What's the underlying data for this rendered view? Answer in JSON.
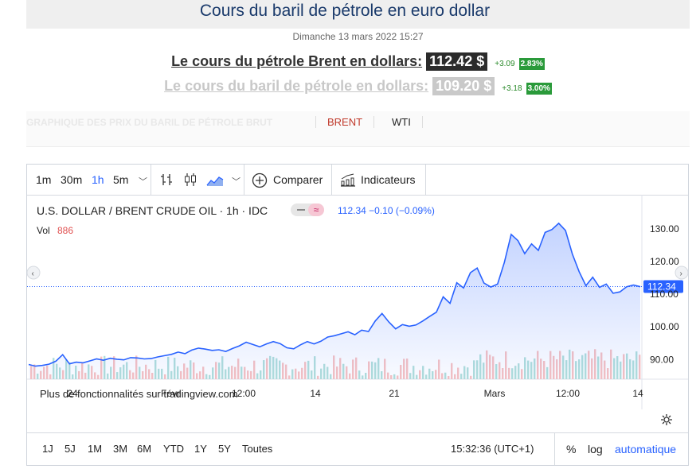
{
  "header": {
    "title": "Cours du baril de pétrole en euro dollar",
    "date": "Dimanche 13 mars 2022 15:27"
  },
  "prices": [
    {
      "label": "Le cours du pétrole Brent en dollars:",
      "value": "112.42 $",
      "change": "+3.09",
      "pct": "2.83%"
    },
    {
      "label": "Le cours du baril de pétrole en dollars:",
      "value": "109.20 $",
      "change": "+3.18",
      "pct": "3.00%"
    }
  ],
  "tabs": {
    "graph": "GRAPHIQUE DES PRIX DU BARIL DE PÉTROLE BRUT",
    "brent": "BRENT",
    "wti": "WTI"
  },
  "toolbar": {
    "intervals": [
      "1m",
      "30m",
      "1h",
      "5m"
    ],
    "active_interval": "1h",
    "compare": "Comparer",
    "indicators": "Indicateurs"
  },
  "symbol": {
    "name": "U.S. DOLLAR / BRENT CRUDE OIL · 1h · IDC",
    "quote": "112.34 −0.10 (−0.09%)",
    "vol_label": "Vol",
    "vol_value": "886"
  },
  "watermark": "Plus de fonctionnalités sur tradingview.com",
  "time_axis": [
    "24",
    "Févr",
    "12:00",
    "14",
    "21",
    "Mars",
    "12:00",
    "14"
  ],
  "ranges": [
    "1J",
    "5J",
    "1M",
    "3M",
    "6M",
    "YTD",
    "1Y",
    "5Y",
    "Toutes"
  ],
  "clock": "15:32:36 (UTC+1)",
  "options": {
    "pct": "%",
    "log": "log",
    "auto": "automatique"
  },
  "colors": {
    "line": "#2962ff",
    "up": "#26a69a",
    "down": "#ef5350",
    "accent": "#2962ff"
  },
  "chart_data": {
    "type": "area",
    "y_ticks": [
      130,
      120,
      110,
      100,
      90
    ],
    "ylim": [
      84,
      138
    ],
    "last_price": 112.34,
    "x_ticks": [
      "24",
      "Févr",
      "12:00",
      "14",
      "21",
      "Mars",
      "12:00",
      "14"
    ],
    "series": [
      {
        "values": [
          88.5,
          88,
          88.2,
          88.6,
          89.5,
          91.5,
          88.7,
          89.2,
          89,
          89.6,
          90.2,
          89.8,
          90.4,
          90.1,
          89.9,
          90.6,
          90.5,
          90.2,
          90.3,
          90.8,
          91.2,
          91.6,
          92.3,
          91.8,
          92.9,
          93.5,
          93.2,
          92.8,
          93,
          92.5,
          93.4,
          94.2,
          95.3,
          94.6,
          93.9,
          94.8,
          95.5,
          94.9,
          93.6,
          93.3,
          94.5,
          95.5,
          94.8,
          95.6,
          96.9,
          97.3,
          97.9,
          98.5,
          97.6,
          99,
          98.6,
          101.8,
          104.1,
          101.5,
          99.4,
          100.7,
          100.2,
          100.6,
          101.8,
          103.2,
          104.5,
          109.2,
          107.2,
          113.5,
          111.9,
          116.6,
          118,
          113.4,
          112.2,
          113.1,
          119.7,
          128.3,
          126.4,
          122.4,
          125.4,
          123.4,
          128.9,
          129.8,
          131.7,
          129.5,
          122.3,
          116.9,
          112.6,
          115.2,
          112.1,
          113.1,
          110.3,
          110.7,
          112.3,
          112.8,
          112.3
        ]
      }
    ]
  }
}
